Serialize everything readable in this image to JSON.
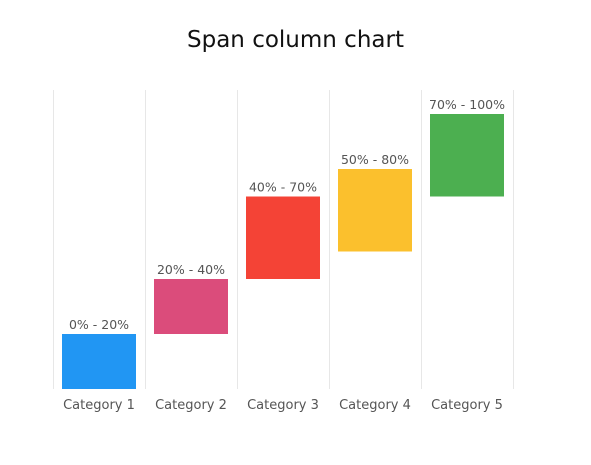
{
  "chart_data": {
    "type": "bar",
    "subtype": "range",
    "title": "Span column chart",
    "xlabel": "",
    "ylabel": "",
    "ylim": [
      0,
      100
    ],
    "grid": "vertical",
    "legend": "none",
    "categories": [
      "Category 1",
      "Category 2",
      "Category 3",
      "Category 4",
      "Category 5"
    ],
    "ranges": [
      {
        "low": 0,
        "high": 20,
        "label": "0% - 20%",
        "color": "#2196F3"
      },
      {
        "low": 20,
        "high": 40,
        "label": "20% - 40%",
        "color": "#DB4C7B"
      },
      {
        "low": 40,
        "high": 70,
        "label": "40% - 70%",
        "color": "#F44336"
      },
      {
        "low": 50,
        "high": 80,
        "label": "50% - 80%",
        "color": "#FBC02D"
      },
      {
        "low": 70,
        "high": 100,
        "label": "70% - 100%",
        "color": "#4CAF50"
      }
    ]
  }
}
